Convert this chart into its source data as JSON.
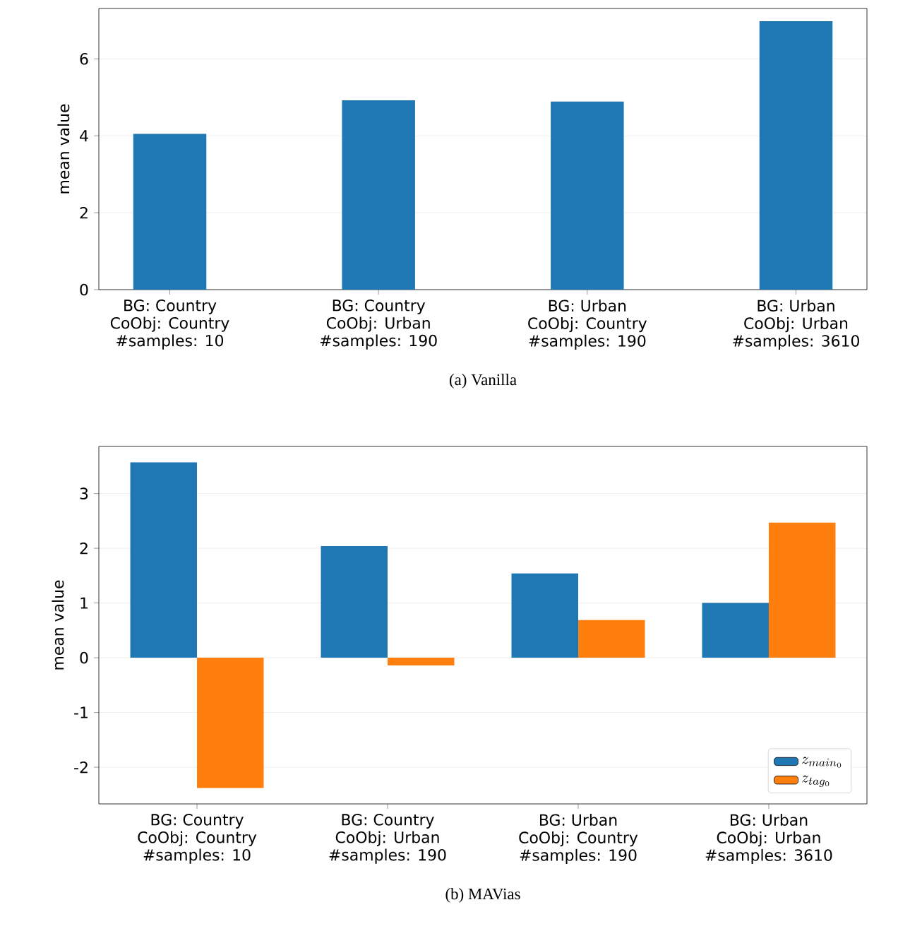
{
  "chart_data": [
    {
      "type": "bar",
      "title": "(a) Vanilla",
      "ylabel": "mean value",
      "categories": [
        "BG: Country\nCoObj: Country\n#samples: 10",
        "BG: Country\nCoObj: Urban\n#samples: 190",
        "BG: Urban\nCoObj: Country\n#samples: 190",
        "BG: Urban\nCoObj: Urban\n#samples: 3610"
      ],
      "values": [
        4.05,
        4.92,
        4.89,
        6.98
      ],
      "color": "#1f77b4",
      "ylim": [
        0,
        7.31
      ],
      "yticks": [
        0,
        2,
        4,
        6
      ],
      "grid": "y"
    },
    {
      "type": "bar",
      "title": "(b) MAVias",
      "ylabel": "mean value",
      "categories": [
        "BG: Country\nCoObj: Country\n#samples: 10",
        "BG: Country\nCoObj: Urban\n#samples: 190",
        "BG: Urban\nCoObj: Country\n#samples: 190",
        "BG: Urban\nCoObj: Urban\n#samples: 3610"
      ],
      "series": [
        {
          "name": "z_{main_0}",
          "color": "#1f77b4",
          "values": [
            3.57,
            2.04,
            1.54,
            1.0
          ]
        },
        {
          "name": "z_{tag_0}",
          "color": "#ff7f0e",
          "values": [
            -2.38,
            -0.14,
            0.69,
            2.47
          ]
        }
      ],
      "ylim": [
        -2.67,
        3.86
      ],
      "yticks": [
        -2,
        -1,
        0,
        1,
        2,
        3
      ],
      "grid": "y",
      "legend": "bottom right"
    }
  ]
}
